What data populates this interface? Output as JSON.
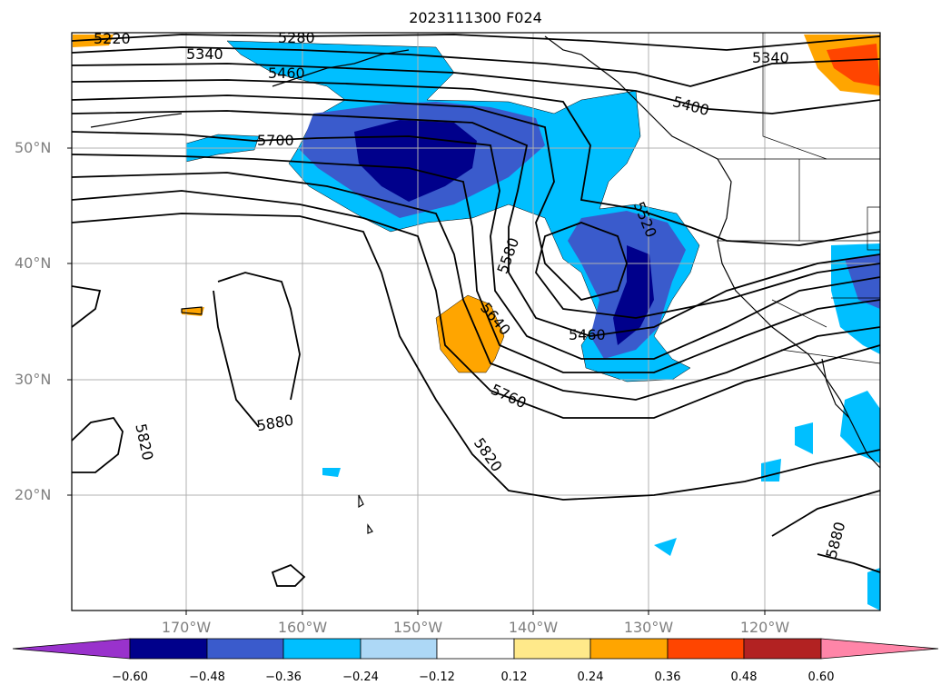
{
  "title": "2023111300 F024",
  "lat_labels": [
    "50°N",
    "40°N",
    "30°N",
    "20°N"
  ],
  "lon_labels": [
    "170°W",
    "160°W",
    "150°W",
    "140°W",
    "130°W",
    "120°W"
  ],
  "contour_labels": [
    "5220",
    "5280",
    "5340",
    "5340",
    "5400",
    "5460",
    "5700",
    "5520",
    "5580",
    "5640",
    "5460",
    "5760",
    "5820",
    "5880",
    "5820",
    "5880"
  ],
  "colorbar": {
    "ticks": [
      "−0.60",
      "−0.48",
      "−0.36",
      "−0.24",
      "−0.12",
      "0.12",
      "0.24",
      "0.36",
      "0.48",
      "0.60"
    ],
    "colors": [
      "#9932cc",
      "#00008b",
      "#3a5bcc",
      "#00bfff",
      "#add8f6",
      "#ffffff",
      "#ffe98a",
      "#ffa500",
      "#ff4500",
      "#b22222",
      "#ff85a8"
    ]
  }
}
